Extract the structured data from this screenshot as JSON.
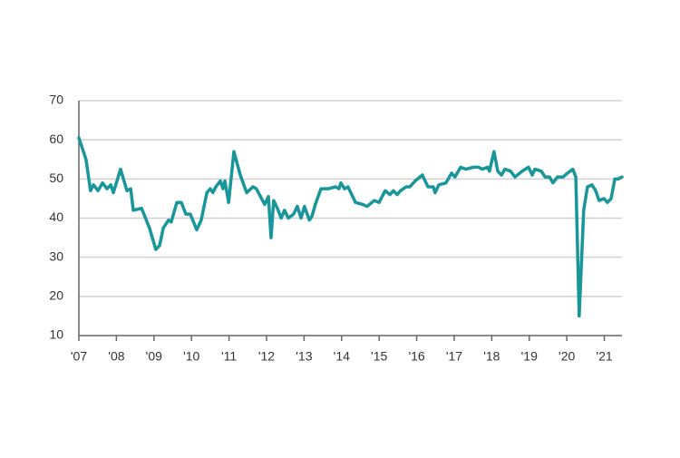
{
  "chart_data": {
    "type": "line",
    "x": [
      2007.0,
      2007.19,
      2007.31,
      2007.39,
      2007.51,
      2007.63,
      2007.75,
      2007.85,
      2007.92,
      2008.11,
      2008.28,
      2008.38,
      2008.45,
      2008.67,
      2008.88,
      2009.05,
      2009.15,
      2009.25,
      2009.39,
      2009.46,
      2009.61,
      2009.73,
      2009.85,
      2009.97,
      2010.14,
      2010.26,
      2010.41,
      2010.5,
      2010.57,
      2010.65,
      2010.77,
      2010.84,
      2010.89,
      2010.99,
      2011.13,
      2011.3,
      2011.47,
      2011.64,
      2011.73,
      2011.95,
      2012.05,
      2012.12,
      2012.19,
      2012.29,
      2012.39,
      2012.48,
      2012.58,
      2012.72,
      2012.82,
      2012.92,
      2013.01,
      2013.14,
      2013.21,
      2013.3,
      2013.45,
      2013.64,
      2013.84,
      2013.93,
      2013.98,
      2014.08,
      2014.17,
      2014.37,
      2014.56,
      2014.68,
      2014.87,
      2015.0,
      2015.16,
      2015.29,
      2015.38,
      2015.48,
      2015.57,
      2015.72,
      2015.82,
      2015.96,
      2016.15,
      2016.3,
      2016.44,
      2016.49,
      2016.59,
      2016.78,
      2016.93,
      2017.02,
      2017.17,
      2017.31,
      2017.51,
      2017.65,
      2017.75,
      2017.89,
      2017.94,
      2018.06,
      2018.16,
      2018.26,
      2018.35,
      2018.5,
      2018.62,
      2018.81,
      2018.98,
      2019.08,
      2019.15,
      2019.32,
      2019.42,
      2019.54,
      2019.63,
      2019.75,
      2019.9,
      2020.02,
      2020.16,
      2020.24,
      2020.33,
      2020.45,
      2020.55,
      2020.67,
      2020.77,
      2020.86,
      2020.99,
      2021.08,
      2021.18,
      2021.28,
      2021.37,
      2021.47
    ],
    "series": [
      {
        "color": "#18969a",
        "values": [
          60.5,
          55,
          47,
          48.5,
          47,
          49,
          47.5,
          48.5,
          46.5,
          52.5,
          47,
          47.5,
          42,
          42.5,
          37.5,
          32,
          33,
          37.5,
          39.5,
          39,
          44,
          44,
          41,
          41,
          37,
          39.5,
          46.5,
          47.5,
          46.5,
          48,
          49.5,
          47.5,
          49.5,
          44,
          57,
          51,
          46.5,
          48,
          47.5,
          43.5,
          45.5,
          35,
          44.5,
          42.5,
          40,
          42,
          40,
          41,
          43,
          40,
          43,
          39.5,
          40.5,
          43.5,
          47.5,
          47.5,
          48,
          47.5,
          49,
          47.5,
          48,
          44,
          43.5,
          43,
          44.5,
          44,
          47,
          46,
          47,
          46,
          47,
          48,
          48,
          49.5,
          51,
          48,
          48,
          46.5,
          48.5,
          49,
          51.5,
          50.5,
          53,
          52.5,
          53,
          53,
          52.5,
          53,
          52,
          57,
          52,
          51,
          52.5,
          52,
          50.5,
          52,
          53,
          51,
          52.5,
          52,
          50.5,
          50.5,
          49,
          50.5,
          50.5,
          51.5,
          52.5,
          50.5,
          15,
          42,
          48,
          48.5,
          47,
          44.5,
          45,
          44,
          45,
          50,
          50,
          50.5
        ]
      }
    ],
    "xlim": [
      2007,
      2021.47
    ],
    "xticks": [
      {
        "value": 2007,
        "label": "'07"
      },
      {
        "value": 2008,
        "label": "'08"
      },
      {
        "value": 2009,
        "label": "'09"
      },
      {
        "value": 2010,
        "label": "'10"
      },
      {
        "value": 2011,
        "label": "'11"
      },
      {
        "value": 2012,
        "label": "'12"
      },
      {
        "value": 2013,
        "label": "'13"
      },
      {
        "value": 2014,
        "label": "'14"
      },
      {
        "value": 2015,
        "label": "'15"
      },
      {
        "value": 2016,
        "label": "'16"
      },
      {
        "value": 2017,
        "label": "'17"
      },
      {
        "value": 2018,
        "label": "'18"
      },
      {
        "value": 2019,
        "label": "'19"
      },
      {
        "value": 2020,
        "label": "'20"
      },
      {
        "value": 2021,
        "label": "'21"
      }
    ],
    "ylim": [
      10,
      70
    ],
    "yticks": [
      10,
      20,
      30,
      40,
      50,
      60,
      70
    ],
    "grid": true
  }
}
